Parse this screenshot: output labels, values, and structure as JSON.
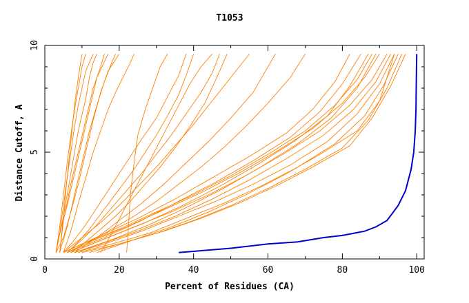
{
  "chart_data": {
    "type": "line",
    "title": "T1053",
    "xlabel": "Percent of Residues (CA)",
    "ylabel": "Distance Cutoff, A",
    "xlim": [
      0,
      102
    ],
    "ylim": [
      0,
      10
    ],
    "xticks": [
      0,
      20,
      40,
      60,
      80,
      100
    ],
    "yticks": [
      0,
      5,
      10
    ],
    "grid": false,
    "colors": {
      "models": "#ff8000",
      "highlight": "#0000cc"
    },
    "series": [
      {
        "group": "models",
        "x": [
          3,
          4,
          5,
          6,
          7,
          8,
          9,
          10,
          11
        ],
        "y": [
          0.3,
          1.5,
          3,
          4.5,
          5.8,
          7,
          8,
          9,
          9.6
        ]
      },
      {
        "group": "models",
        "x": [
          3,
          5,
          7,
          9,
          11,
          12,
          13,
          14
        ],
        "y": [
          0.3,
          2,
          4,
          6,
          7.5,
          8.5,
          9.2,
          9.6
        ]
      },
      {
        "group": "models",
        "x": [
          4,
          5,
          7,
          9,
          11,
          13,
          15,
          16
        ],
        "y": [
          0.3,
          1.8,
          3.5,
          5,
          6.5,
          8,
          9,
          9.6
        ]
      },
      {
        "group": "models",
        "x": [
          3,
          4,
          6,
          8,
          10,
          12,
          14,
          17
        ],
        "y": [
          0.3,
          1.2,
          2.5,
          4,
          5.5,
          7,
          8.5,
          9.6
        ]
      },
      {
        "group": "models",
        "x": [
          4,
          6,
          8,
          10,
          12,
          14,
          16,
          18,
          19
        ],
        "y": [
          0.3,
          1.5,
          3,
          4.5,
          6,
          7.2,
          8.3,
          9.2,
          9.6
        ]
      },
      {
        "group": "models",
        "x": [
          3,
          5,
          7,
          9,
          11,
          13,
          15,
          17,
          20
        ],
        "y": [
          0.3,
          1,
          2.2,
          3.5,
          5,
          6.5,
          7.8,
          8.8,
          9.6
        ]
      },
      {
        "group": "models",
        "x": [
          5,
          7,
          9,
          11,
          13,
          15,
          17,
          19,
          21,
          23,
          24
        ],
        "y": [
          0.3,
          1.3,
          2.6,
          3.8,
          5,
          6,
          7,
          7.8,
          8.5,
          9.2,
          9.6
        ]
      },
      {
        "group": "models",
        "x": [
          4,
          5,
          6,
          7,
          8,
          9,
          10
        ],
        "y": [
          0.3,
          2,
          3.8,
          5.5,
          7.2,
          8.5,
          9.6
        ]
      },
      {
        "group": "models",
        "x": [
          3,
          4,
          5,
          6,
          7,
          8,
          9,
          10,
          11,
          13
        ],
        "y": [
          0.3,
          1.2,
          2.5,
          3.8,
          5,
          6.2,
          7.2,
          8,
          8.8,
          9.6
        ]
      },
      {
        "group": "models",
        "x": [
          5,
          8,
          11,
          14,
          17,
          20,
          23,
          26,
          30,
          33,
          36,
          38
        ],
        "y": [
          0.3,
          0.9,
          1.6,
          2.4,
          3.2,
          4,
          4.8,
          5.6,
          6.6,
          7.6,
          8.6,
          9.6
        ]
      },
      {
        "group": "models",
        "x": [
          6,
          9,
          12,
          15,
          18,
          21,
          24,
          27,
          30,
          33,
          36,
          38,
          40
        ],
        "y": [
          0.3,
          0.8,
          1.4,
          2.1,
          2.8,
          3.5,
          4.2,
          5,
          5.8,
          6.7,
          7.7,
          8.6,
          9.6
        ]
      },
      {
        "group": "models",
        "x": [
          6,
          10,
          14,
          18,
          22,
          26,
          30,
          34,
          38,
          42,
          45,
          47
        ],
        "y": [
          0.3,
          0.9,
          1.6,
          2.4,
          3.2,
          4,
          4.9,
          5.8,
          6.8,
          7.8,
          8.7,
          9.6
        ]
      },
      {
        "group": "models",
        "x": [
          7,
          11,
          15,
          19,
          23,
          27,
          31,
          35,
          39,
          43,
          46,
          49
        ],
        "y": [
          0.3,
          0.8,
          1.4,
          2,
          2.7,
          3.5,
          4.3,
          5.2,
          6.2,
          7.3,
          8.4,
          9.6
        ]
      },
      {
        "group": "models",
        "x": [
          5,
          10,
          15,
          20,
          25,
          30,
          35,
          40,
          45,
          50,
          55
        ],
        "y": [
          0.3,
          1,
          1.7,
          2.5,
          3.4,
          4.3,
          5.3,
          6.3,
          7.4,
          8.5,
          9.6
        ]
      },
      {
        "group": "models",
        "x": [
          8,
          14,
          20,
          26,
          32,
          38,
          44,
          50,
          56,
          62
        ],
        "y": [
          0.3,
          1,
          1.8,
          2.6,
          3.5,
          4.5,
          5.5,
          6.6,
          7.8,
          9.6
        ]
      },
      {
        "group": "models",
        "x": [
          22,
          22.5,
          23,
          24,
          25,
          27,
          29,
          31,
          33
        ],
        "y": [
          0.3,
          1.5,
          3,
          4.5,
          5.8,
          7,
          8,
          9,
          9.6
        ]
      },
      {
        "group": "models",
        "x": [
          15,
          18,
          21,
          24,
          27,
          30,
          33,
          36,
          39,
          42,
          45
        ],
        "y": [
          0.3,
          1.2,
          2.2,
          3.2,
          4.2,
          5.2,
          6.2,
          7.2,
          8.2,
          9,
          9.6
        ]
      },
      {
        "group": "models",
        "x": [
          6,
          12,
          18,
          24,
          30,
          36,
          42,
          48,
          54,
          60,
          66,
          70
        ],
        "y": [
          0.3,
          0.8,
          1.4,
          2,
          2.7,
          3.5,
          4.3,
          5.2,
          6.2,
          7.3,
          8.5,
          9.6
        ]
      },
      {
        "group": "models",
        "x": [
          5,
          10,
          20,
          30,
          40,
          50,
          60,
          70,
          78,
          84,
          88
        ],
        "y": [
          0.3,
          0.7,
          1.4,
          2.2,
          3,
          3.9,
          4.9,
          6,
          7.2,
          8.4,
          9.6
        ]
      },
      {
        "group": "models",
        "x": [
          6,
          12,
          22,
          32,
          42,
          52,
          62,
          72,
          80,
          86,
          90
        ],
        "y": [
          0.3,
          0.8,
          1.5,
          2.3,
          3.1,
          4,
          5,
          6.1,
          7.3,
          8.5,
          9.6
        ]
      },
      {
        "group": "models",
        "x": [
          7,
          14,
          24,
          34,
          44,
          54,
          64,
          74,
          82,
          88,
          92
        ],
        "y": [
          0.3,
          0.8,
          1.5,
          2.2,
          3,
          3.9,
          4.9,
          6,
          7.2,
          8.4,
          9.6
        ]
      },
      {
        "group": "models",
        "x": [
          8,
          15,
          25,
          35,
          45,
          55,
          65,
          75,
          83,
          89,
          93
        ],
        "y": [
          0.3,
          0.7,
          1.3,
          2,
          2.8,
          3.7,
          4.7,
          5.8,
          7,
          8.3,
          9.6
        ]
      },
      {
        "group": "models",
        "x": [
          8,
          16,
          26,
          36,
          46,
          56,
          66,
          76,
          84,
          90,
          94
        ],
        "y": [
          0.3,
          0.7,
          1.3,
          2,
          2.7,
          3.5,
          4.4,
          5.5,
          6.8,
          8.2,
          9.6
        ]
      },
      {
        "group": "models",
        "x": [
          9,
          18,
          28,
          38,
          48,
          58,
          68,
          78,
          86,
          91,
          95
        ],
        "y": [
          0.3,
          0.7,
          1.2,
          1.9,
          2.6,
          3.4,
          4.3,
          5.4,
          6.7,
          8.1,
          9.6
        ]
      },
      {
        "group": "models",
        "x": [
          10,
          20,
          30,
          40,
          50,
          60,
          70,
          80,
          87,
          92,
          96
        ],
        "y": [
          0.3,
          0.7,
          1.2,
          1.8,
          2.5,
          3.3,
          4.2,
          5.2,
          6.5,
          8,
          9.6
        ]
      },
      {
        "group": "models",
        "x": [
          12,
          22,
          32,
          42,
          52,
          62,
          72,
          82,
          88,
          93,
          97
        ],
        "y": [
          0.3,
          0.8,
          1.3,
          1.9,
          2.6,
          3.4,
          4.3,
          5.3,
          6.6,
          8.1,
          9.6
        ]
      },
      {
        "group": "models",
        "x": [
          14,
          24,
          34,
          44,
          54,
          64,
          74,
          84,
          90,
          94
        ],
        "y": [
          0.3,
          0.9,
          1.5,
          2.2,
          3,
          3.9,
          4.9,
          6,
          7.4,
          9.6
        ]
      },
      {
        "group": "models",
        "x": [
          5,
          15,
          25,
          35,
          45,
          55,
          65,
          72,
          78,
          82
        ],
        "y": [
          0.3,
          1.1,
          1.9,
          2.8,
          3.8,
          4.8,
          5.9,
          7,
          8.3,
          9.6
        ]
      },
      {
        "group": "models",
        "x": [
          6,
          16,
          26,
          36,
          46,
          56,
          66,
          74,
          80,
          85
        ],
        "y": [
          0.3,
          1,
          1.8,
          2.7,
          3.6,
          4.6,
          5.7,
          6.9,
          8.2,
          9.6
        ]
      },
      {
        "group": "models",
        "x": [
          7,
          17,
          27,
          37,
          47,
          57,
          67,
          76,
          82,
          87
        ],
        "y": [
          0.3,
          1,
          1.7,
          2.5,
          3.4,
          4.4,
          5.5,
          6.7,
          8.1,
          9.6
        ]
      },
      {
        "group": "models",
        "x": [
          8,
          18,
          28,
          38,
          48,
          58,
          68,
          77,
          84,
          89
        ],
        "y": [
          0.3,
          0.9,
          1.6,
          2.4,
          3.3,
          4.3,
          5.4,
          6.6,
          8,
          9.6
        ]
      },
      {
        "group": "highlight",
        "x": [
          36,
          50,
          60,
          68,
          75,
          80,
          86,
          89,
          92,
          95,
          97,
          98.5,
          99.2,
          99.6,
          99.8,
          99.9,
          100
        ],
        "y": [
          0.3,
          0.5,
          0.7,
          0.8,
          1,
          1.1,
          1.3,
          1.5,
          1.8,
          2.5,
          3.2,
          4.2,
          5,
          6,
          7,
          8.5,
          9.6
        ]
      }
    ]
  }
}
